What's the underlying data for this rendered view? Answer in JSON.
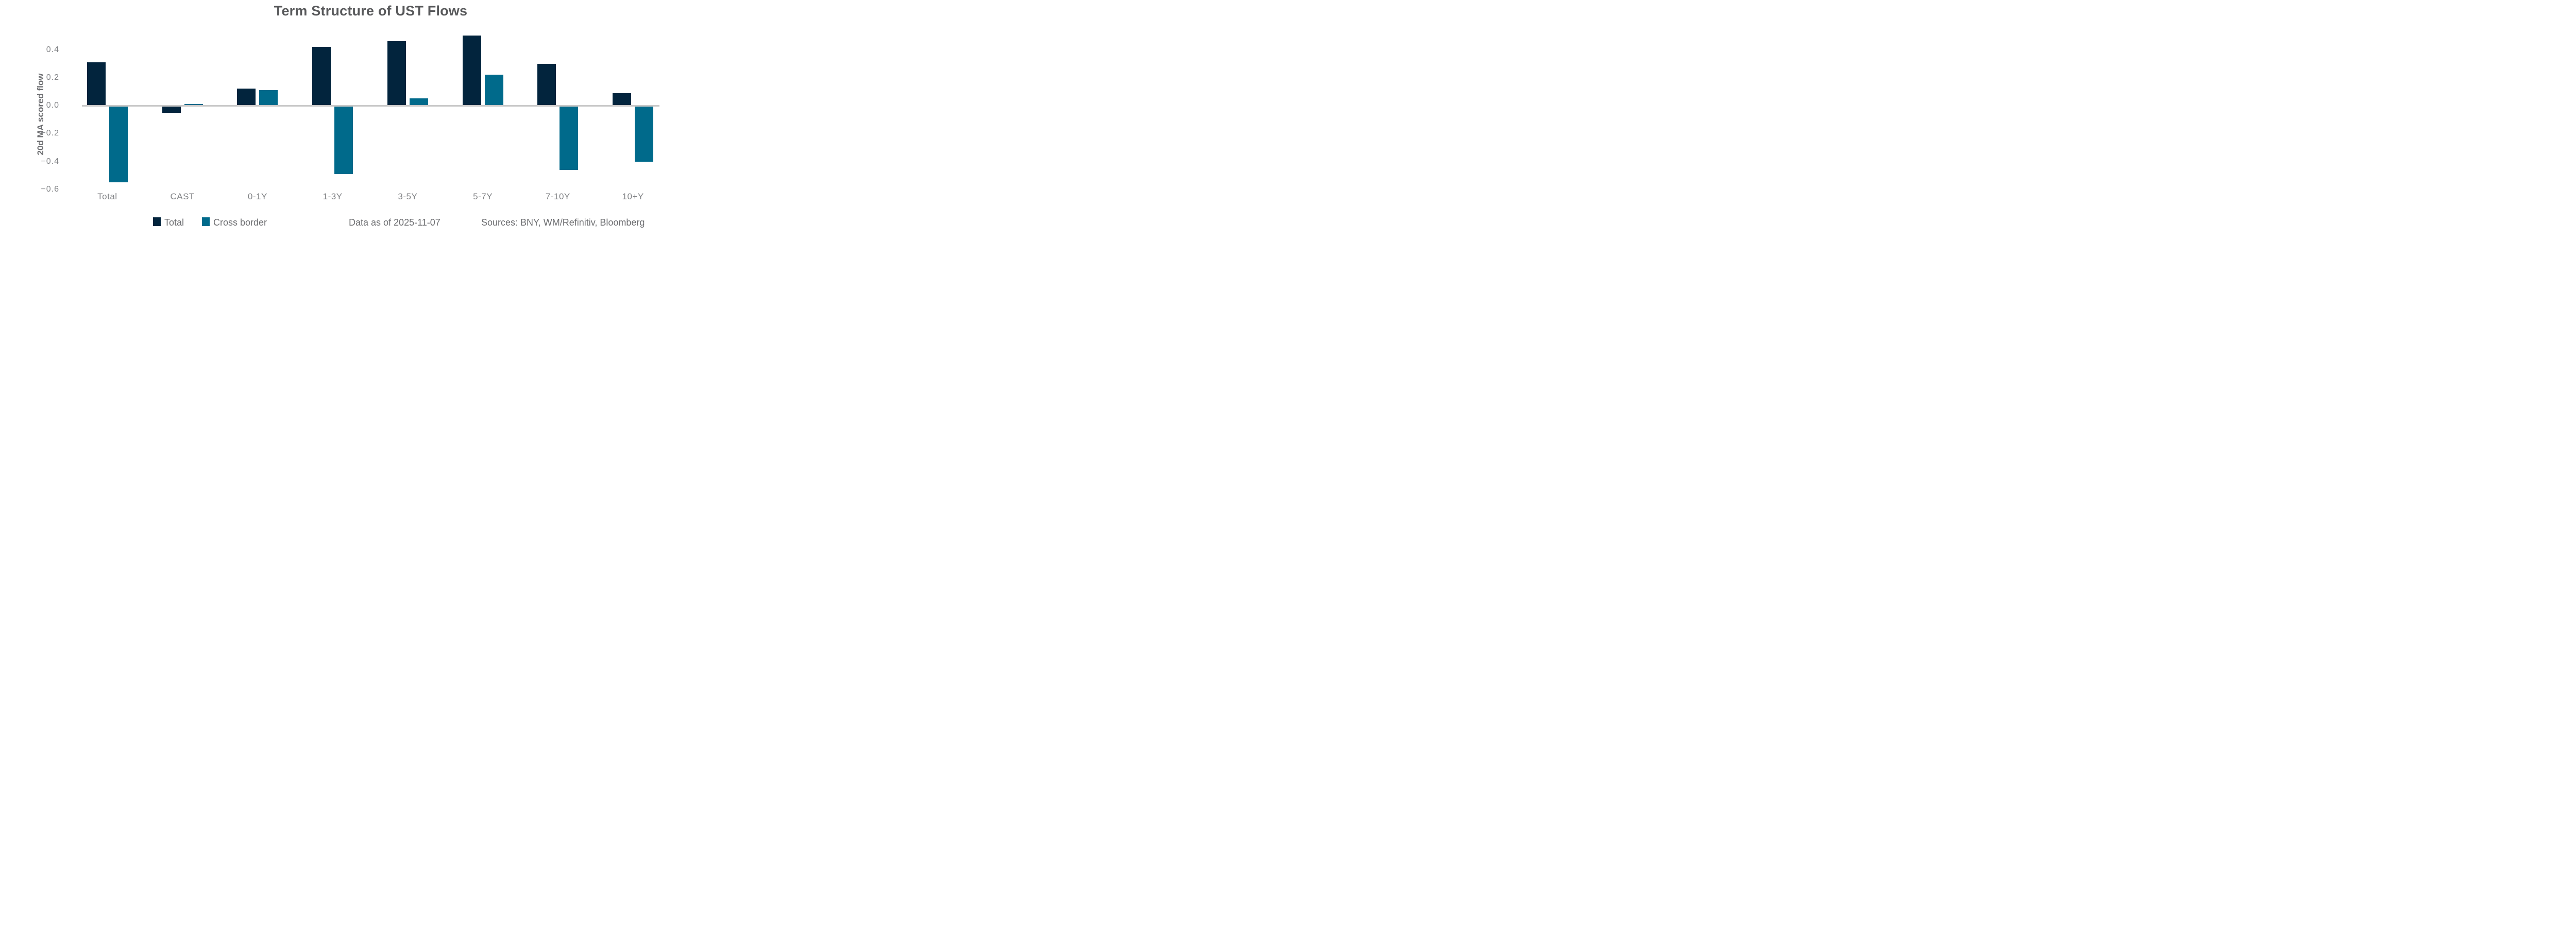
{
  "title": "Term Structure of UST Flows",
  "chart_data": {
    "type": "bar",
    "categories": [
      "Total",
      "CAST",
      "0-1Y",
      "1-3Y",
      "3-5Y",
      "5-7Y",
      "7-10Y",
      "10+Y"
    ],
    "series": [
      {
        "name": "Total",
        "color": "#02243d",
        "values": [
          0.31,
          -0.05,
          0.12,
          0.42,
          0.46,
          0.5,
          0.3,
          0.09
        ]
      },
      {
        "name": "Cross border",
        "color": "#006a8b",
        "values": [
          -0.55,
          0.01,
          0.11,
          -0.49,
          0.05,
          0.22,
          -0.46,
          -0.4
        ]
      }
    ],
    "ylabel": "20d MA scored flow",
    "ylim": [
      -0.65,
      0.55
    ],
    "yticks": [
      {
        "label": "0.4",
        "value": 0.4
      },
      {
        "label": "0.2",
        "value": 0.2
      },
      {
        "label": "0.0",
        "value": 0.0
      },
      {
        "label": "−0.2",
        "value": -0.2
      },
      {
        "label": "−0.4",
        "value": -0.4
      },
      {
        "label": "−0.6",
        "value": -0.6
      }
    ],
    "grid": false,
    "legend_position": "bottom-left",
    "baseline_color": "#c9c9c9"
  },
  "footer": {
    "data_as_of": "Data as of 2025-11-07",
    "sources": "Sources:  BNY, WM/Refinitiv, Bloomberg"
  },
  "text_colors": {
    "title": "#58595b",
    "axis_label": "#6d6e71",
    "tick_label": "#808285",
    "footer": "#6d6e71"
  }
}
